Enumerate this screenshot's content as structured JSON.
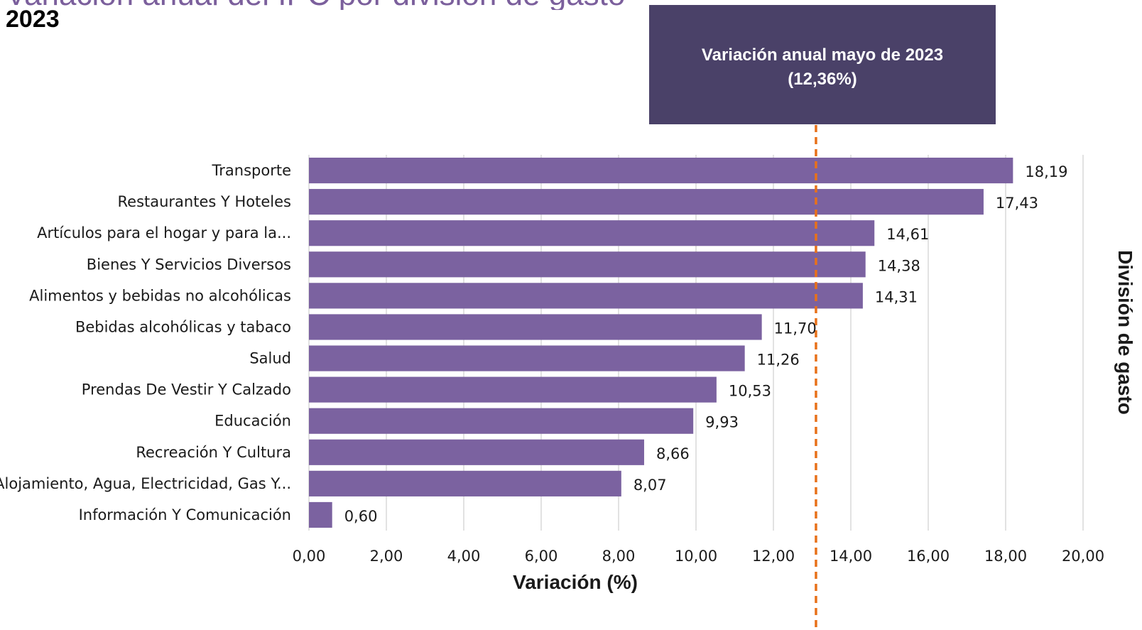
{
  "header": {
    "title": "2023"
  },
  "annotation": {
    "line1": "Variación anual mayo de 2023",
    "line2": "(12,36%)"
  },
  "chart_data": {
    "type": "bar",
    "orientation": "horizontal",
    "xlabel": "Variación (%)",
    "ylabel": "División de gasto",
    "xlim": [
      0,
      20
    ],
    "x_ticks": [
      "0,00",
      "2,00",
      "4,00",
      "6,00",
      "8,00",
      "10,00",
      "12,00",
      "14,00",
      "16,00",
      "18,00",
      "20,00"
    ],
    "grid": "vertical",
    "categories": [
      "Transporte",
      "Restaurantes Y Hoteles",
      "Artículos para el hogar y para la...",
      "Bienes Y Servicios Diversos",
      "Alimentos y bebidas no alcohólicas",
      "Bebidas alcohólicas y tabaco",
      "Salud",
      "Prendas De Vestir Y Calzado",
      "Educación",
      "Recreación Y Cultura",
      "Alojamiento, Agua, Electricidad, Gas Y...",
      "Información Y Comunicación"
    ],
    "values": [
      18.19,
      17.43,
      14.61,
      14.38,
      14.31,
      11.7,
      11.26,
      10.53,
      9.93,
      8.66,
      8.07,
      0.6
    ],
    "value_labels": [
      "18,19",
      "17,43",
      "14,61",
      "14,38",
      "14,31",
      "11,70",
      "11,26",
      "10,53",
      "9,93",
      "8,66",
      "8,07",
      "0,60"
    ],
    "reference_line": {
      "value": 13.1,
      "style": "dashed"
    },
    "colors": {
      "bar": "#7b62a0",
      "reference_line": "#e8711a",
      "annotation_box": "#4a4168",
      "grid": "#d9d9d9"
    }
  }
}
